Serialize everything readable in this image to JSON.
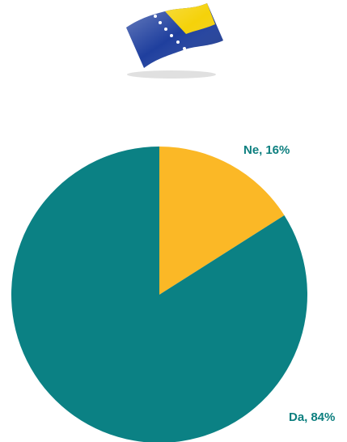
{
  "flag": {
    "icon": "bosnia-herzegovina-flag-icon",
    "colors": {
      "blue": "#1f3f9e",
      "yellow": "#f5d20a",
      "star": "#ffffff"
    }
  },
  "chart_data": {
    "type": "pie",
    "title": "",
    "slices": [
      {
        "name": "Ne",
        "value": 16,
        "color": "#fbb826",
        "label_name": "Ne,",
        "label_value": "16%",
        "label_color": "#0d7f7f"
      },
      {
        "name": "Da",
        "value": 84,
        "color": "#0b8184",
        "label_name": "Da,",
        "label_value": "84%",
        "label_color": "#0d7f7f"
      }
    ],
    "start_angle_deg": 0,
    "direction": "clockwise",
    "legend": "none"
  }
}
